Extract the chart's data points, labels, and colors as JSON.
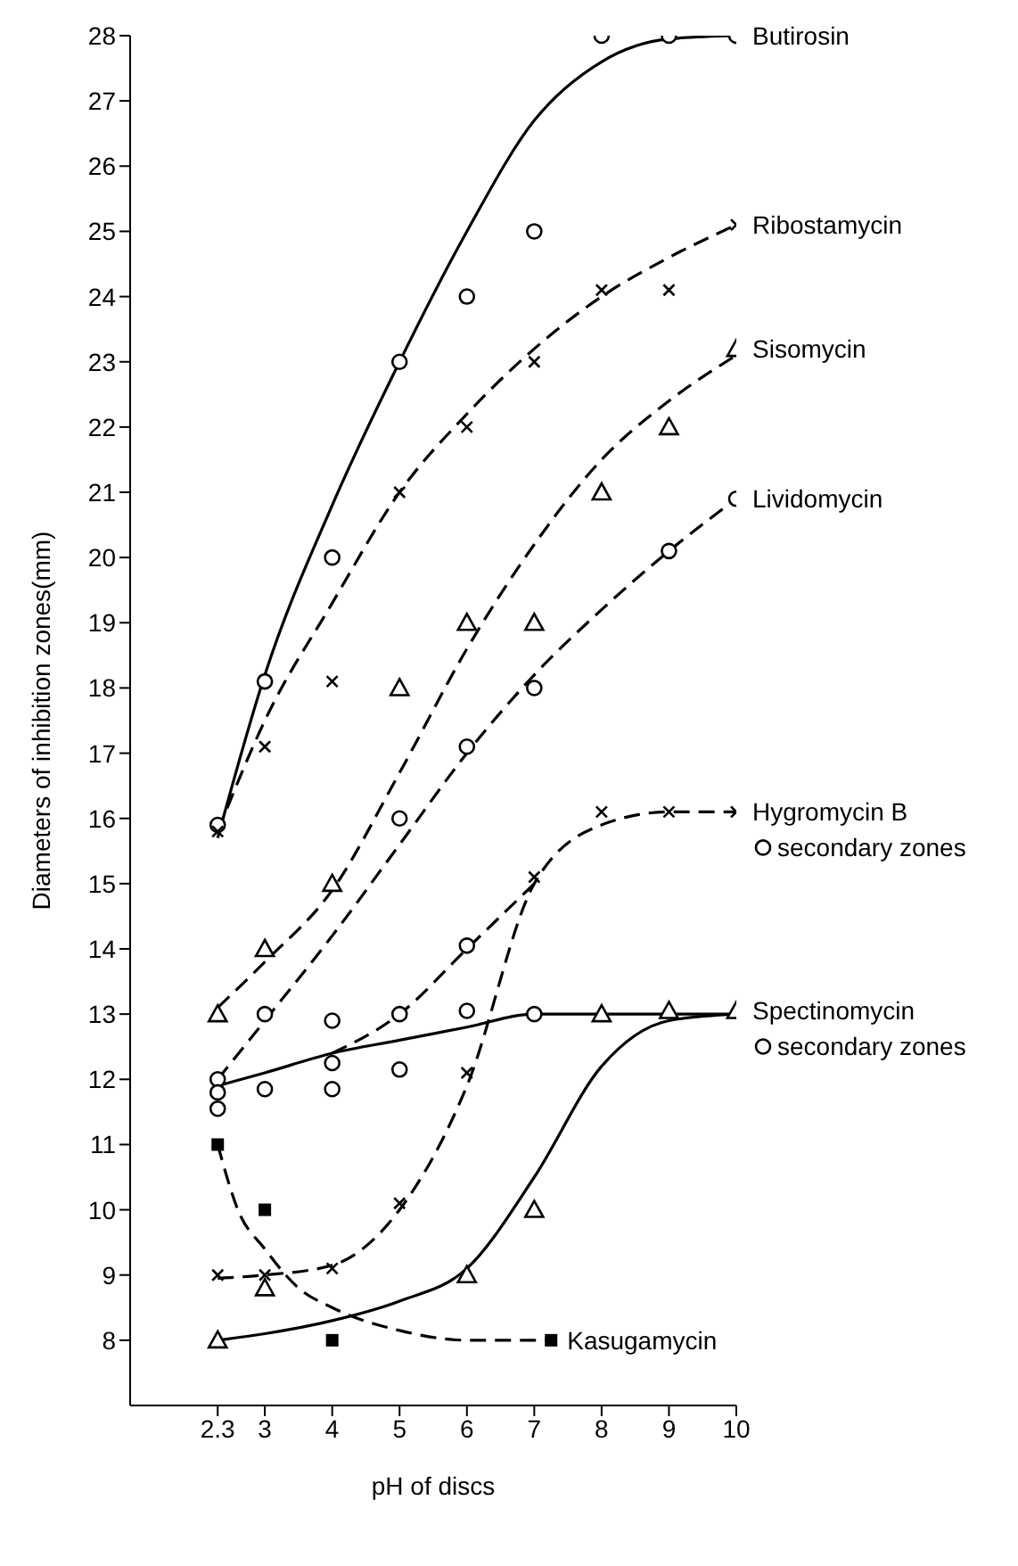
{
  "chart_data": {
    "type": "scatter",
    "xlabel": "pH of discs",
    "ylabel": "Diameters of inhibition zones(mm)",
    "xlim": [
      1,
      10
    ],
    "xticks": [
      2.3,
      3,
      4,
      5,
      6,
      7,
      8,
      9,
      10
    ],
    "ylim": [
      7,
      28
    ],
    "yticks": [
      8,
      9,
      10,
      11,
      12,
      13,
      14,
      15,
      16,
      17,
      18,
      19,
      20,
      21,
      22,
      23,
      24,
      25,
      26,
      27,
      28
    ],
    "grid": false,
    "legend": "right",
    "series": [
      {
        "name": "Butirosin",
        "color": "#000000",
        "marker": "circle",
        "x": [
          2.3,
          3,
          4,
          5,
          6,
          7,
          8,
          9,
          10
        ],
        "values": [
          15.9,
          18.1,
          20,
          23,
          24,
          25,
          28,
          28,
          28
        ]
      },
      {
        "type": "line",
        "color": "#000000",
        "line_style": "solid",
        "x": [
          2.3,
          3,
          4,
          5,
          6,
          7,
          8,
          9,
          10
        ],
        "values": [
          15.7,
          18.2,
          20.8,
          23,
          25,
          26.7,
          27.6,
          27.95,
          28
        ]
      },
      {
        "name": "Ribostamycin",
        "color": "#000000",
        "marker": "cross",
        "x": [
          2.3,
          3,
          4,
          5,
          6,
          7,
          8,
          9,
          10
        ],
        "values": [
          15.8,
          17.1,
          18.1,
          21,
          22,
          23,
          24.1,
          24.1,
          25.1
        ]
      },
      {
        "type": "line",
        "color": "#000000",
        "line_style": "dashed",
        "x": [
          2.3,
          3,
          4,
          5,
          6,
          7,
          8,
          9,
          10
        ],
        "values": [
          15.8,
          17.5,
          19.3,
          21,
          22.2,
          23.2,
          24,
          24.6,
          25.1
        ]
      },
      {
        "name": "Sisomycin",
        "color": "#000000",
        "marker": "triangle",
        "x": [
          2.3,
          3,
          4,
          5,
          6,
          7,
          8,
          9,
          10
        ],
        "values": [
          13,
          14,
          15,
          18,
          19,
          19,
          21,
          22,
          23.2
        ]
      },
      {
        "type": "line",
        "color": "#000000",
        "line_style": "dashed",
        "x": [
          2.3,
          3,
          4,
          5,
          6,
          7,
          8,
          9,
          10
        ],
        "values": [
          13.1,
          13.8,
          14.9,
          16.7,
          18.6,
          20.2,
          21.5,
          22.4,
          23.1
        ]
      },
      {
        "name": "Lividomycin",
        "color": "#000000",
        "marker": "circle",
        "x": [
          2.3,
          3,
          4,
          5,
          6,
          7,
          9,
          10
        ],
        "values": [
          12,
          13,
          12.9,
          16,
          17.1,
          18,
          20.1,
          20.9
        ]
      },
      {
        "type": "line",
        "color": "#000000",
        "line_style": "dashed",
        "x": [
          2.3,
          3,
          4,
          5,
          6,
          7,
          8,
          9,
          10
        ],
        "values": [
          12,
          12.9,
          14.2,
          15.6,
          17,
          18.2,
          19.2,
          20.1,
          20.9
        ]
      },
      {
        "name": "Hygromycin B",
        "color": "#000000",
        "marker": "cross",
        "x": [
          2.3,
          3,
          4,
          5,
          6,
          7,
          8,
          9,
          10
        ],
        "values": [
          9,
          9,
          9.1,
          10.1,
          12.1,
          15.1,
          16.1,
          16.1,
          16.1
        ]
      },
      {
        "name": "secondary zones",
        "color": "#000000",
        "marker": "circle",
        "x": [
          2.3,
          3,
          4,
          5,
          6
        ],
        "values": [
          11.8,
          11.85,
          11.85,
          13,
          14.05
        ]
      },
      {
        "type": "line",
        "color": "#000000",
        "line_style": "dashed",
        "x": [
          2.3,
          3,
          4,
          5,
          6,
          7,
          8,
          9,
          10
        ],
        "values": [
          8.95,
          9,
          9.15,
          10,
          11.9,
          15,
          15.9,
          16.1,
          16.1
        ]
      },
      {
        "type": "line",
        "color": "#000000",
        "line_style": "dashed",
        "x": [
          4,
          5,
          6,
          7
        ],
        "values": [
          12.4,
          13,
          14,
          15
        ]
      },
      {
        "name": "Spectinomycin",
        "color": "#000000",
        "marker": "triangle",
        "x": [
          2.3,
          3,
          6,
          7,
          8,
          9,
          10
        ],
        "values": [
          8,
          8.8,
          9,
          10,
          13,
          13.05,
          13.05
        ]
      },
      {
        "name": "secondary zones",
        "color": "#000000",
        "marker": "circle",
        "x": [
          2.3,
          4,
          5,
          6,
          7
        ],
        "values": [
          11.55,
          12.25,
          12.15,
          13.05,
          13
        ]
      },
      {
        "type": "line",
        "color": "#000000",
        "line_style": "solid",
        "x": [
          2.3,
          3,
          4,
          5,
          6,
          7,
          8,
          9,
          10
        ],
        "values": [
          8,
          8.1,
          8.3,
          8.6,
          9.1,
          10.5,
          12.2,
          12.9,
          13
        ]
      },
      {
        "type": "line",
        "color": "#000000",
        "line_style": "solid",
        "x": [
          2.3,
          3,
          4,
          5,
          6,
          7,
          8,
          9,
          10
        ],
        "values": [
          11.9,
          12.1,
          12.4,
          12.6,
          12.8,
          13,
          13,
          13,
          13
        ]
      },
      {
        "name": "Kasugamycin",
        "color": "#000000",
        "marker": "square",
        "x": [
          2.3,
          3,
          4,
          7.25
        ],
        "values": [
          11,
          10,
          8,
          8
        ]
      },
      {
        "type": "line",
        "color": "#000000",
        "line_style": "dashed",
        "x": [
          2.3,
          2.6,
          3,
          3.5,
          4,
          5,
          6,
          7.25
        ],
        "values": [
          11,
          10,
          9.4,
          8.8,
          8.5,
          8.15,
          8,
          8
        ]
      }
    ]
  }
}
